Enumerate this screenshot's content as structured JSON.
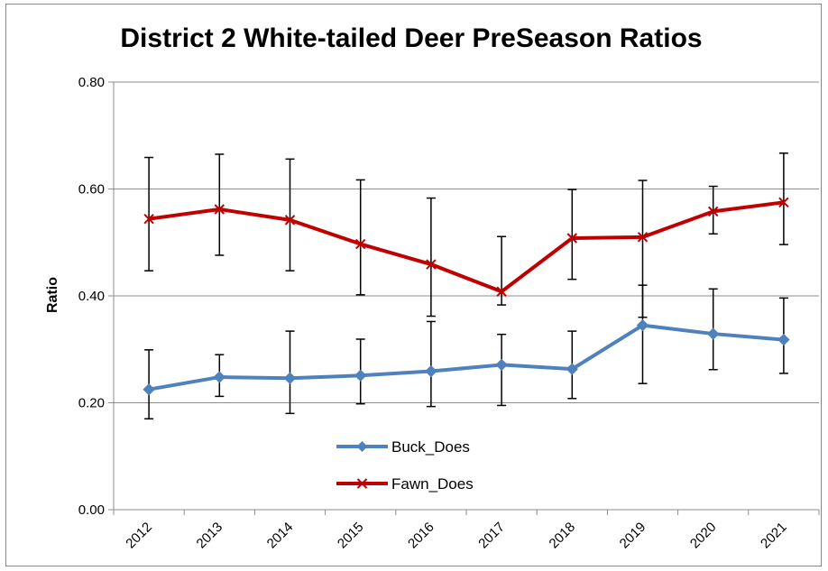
{
  "chart_data": {
    "type": "line",
    "title": "District 2 White-tailed Deer PreSeason Ratios",
    "xlabel": "",
    "ylabel": "Ratio",
    "ylim": [
      0,
      0.8
    ],
    "yticks": [
      "0.00",
      "0.20",
      "0.40",
      "0.60",
      "0.80"
    ],
    "categories": [
      "2012",
      "2013",
      "2014",
      "2015",
      "2016",
      "2017",
      "2018",
      "2019",
      "2020",
      "2021"
    ],
    "grid": "horizontal",
    "legend_position": "inside-lower-center",
    "series": [
      {
        "name": "Buck_Does",
        "color": "#4F81BD",
        "marker": "diamond",
        "values": [
          0.225,
          0.248,
          0.246,
          0.251,
          0.259,
          0.271,
          0.263,
          0.345,
          0.329,
          0.318
        ],
        "error_low": [
          0.17,
          0.212,
          0.18,
          0.198,
          0.193,
          0.195,
          0.208,
          0.236,
          0.262,
          0.255
        ],
        "error_high": [
          0.299,
          0.29,
          0.334,
          0.319,
          0.352,
          0.328,
          0.334,
          0.42,
          0.413,
          0.396
        ]
      },
      {
        "name": "Fawn_Does",
        "color": "#C00000",
        "marker": "x",
        "values": [
          0.544,
          0.562,
          0.542,
          0.497,
          0.459,
          0.408,
          0.508,
          0.51,
          0.558,
          0.575
        ],
        "error_low": [
          0.447,
          0.476,
          0.447,
          0.402,
          0.362,
          0.383,
          0.431,
          0.36,
          0.516,
          0.496
        ],
        "error_high": [
          0.659,
          0.665,
          0.656,
          0.617,
          0.583,
          0.511,
          0.599,
          0.616,
          0.605,
          0.667
        ]
      }
    ]
  }
}
